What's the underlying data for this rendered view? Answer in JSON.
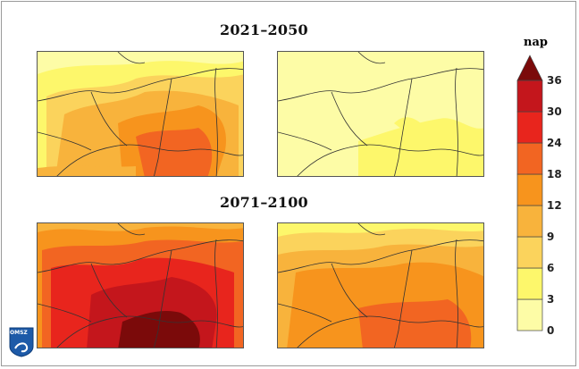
{
  "periods": [
    "2021–2050",
    "2071–2100"
  ],
  "scale": {
    "unit": "nap",
    "ticks": [
      "0",
      "3",
      "6",
      "9",
      "12",
      "18",
      "24",
      "30",
      "36"
    ],
    "colors": [
      "#fdfca6",
      "#fdf76b",
      "#fbd35c",
      "#f8b33c",
      "#f7941d",
      "#f26522",
      "#e8251d",
      "#c4161c",
      "#7b0a0a"
    ]
  },
  "logo": {
    "text": "OMSZ"
  }
}
